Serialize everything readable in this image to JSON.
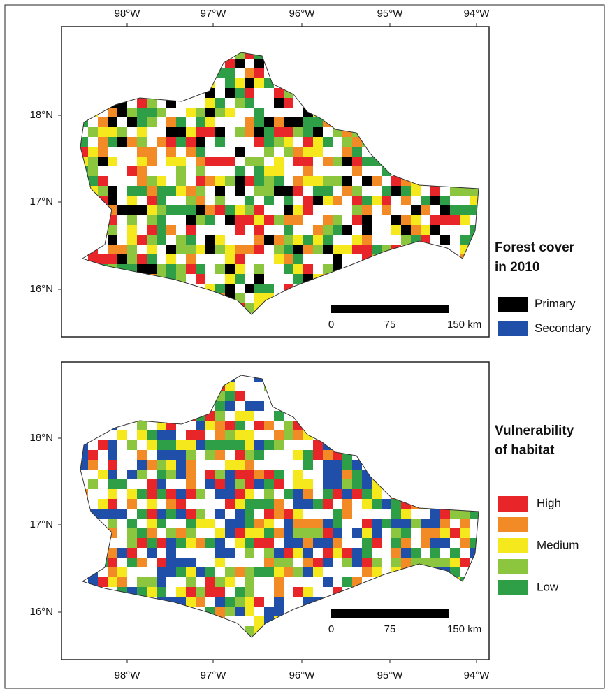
{
  "panels": [
    {
      "x_ticks": [
        "98°W",
        "97°W",
        "96°W",
        "95°W",
        "94°W"
      ],
      "x_ticks_side": "top",
      "y_ticks": [
        "18°N",
        "17°N",
        "16°N"
      ],
      "scale_bar": [
        "0",
        "75",
        "150 km"
      ],
      "legend": {
        "title": [
          "Forest cover",
          "in 2010"
        ],
        "items": [
          {
            "color": "#000000",
            "label": "Primary"
          },
          {
            "color": "#1f4fa8",
            "label": "Secondary"
          }
        ]
      },
      "cell_colors": [
        "#e8262a",
        "#f28a26",
        "#f5e81c",
        "#8cc63f",
        "#2e9e47",
        "#000000"
      ]
    },
    {
      "x_ticks": [
        "98°W",
        "97°W",
        "96°W",
        "95°W",
        "94°W"
      ],
      "x_ticks_side": "bottom",
      "y_ticks": [
        "18°N",
        "17°N",
        "16°N"
      ],
      "scale_bar": [
        "0",
        "75",
        "150 km"
      ],
      "legend": {
        "title": [
          "Vulnerability",
          "of habitat"
        ],
        "items": [
          {
            "color": "#e8262a",
            "label": "High"
          },
          {
            "color": "#f28a26"
          },
          {
            "color": "#f5e81c",
            "label": "Medium"
          },
          {
            "color": "#8cc63f"
          },
          {
            "color": "#2e9e47",
            "label": "Low"
          }
        ]
      },
      "cell_colors": [
        "#e8262a",
        "#f28a26",
        "#f5e81c",
        "#8cc63f",
        "#2e9e47",
        "#1f4fa8",
        "#1f4fa8"
      ]
    }
  ]
}
